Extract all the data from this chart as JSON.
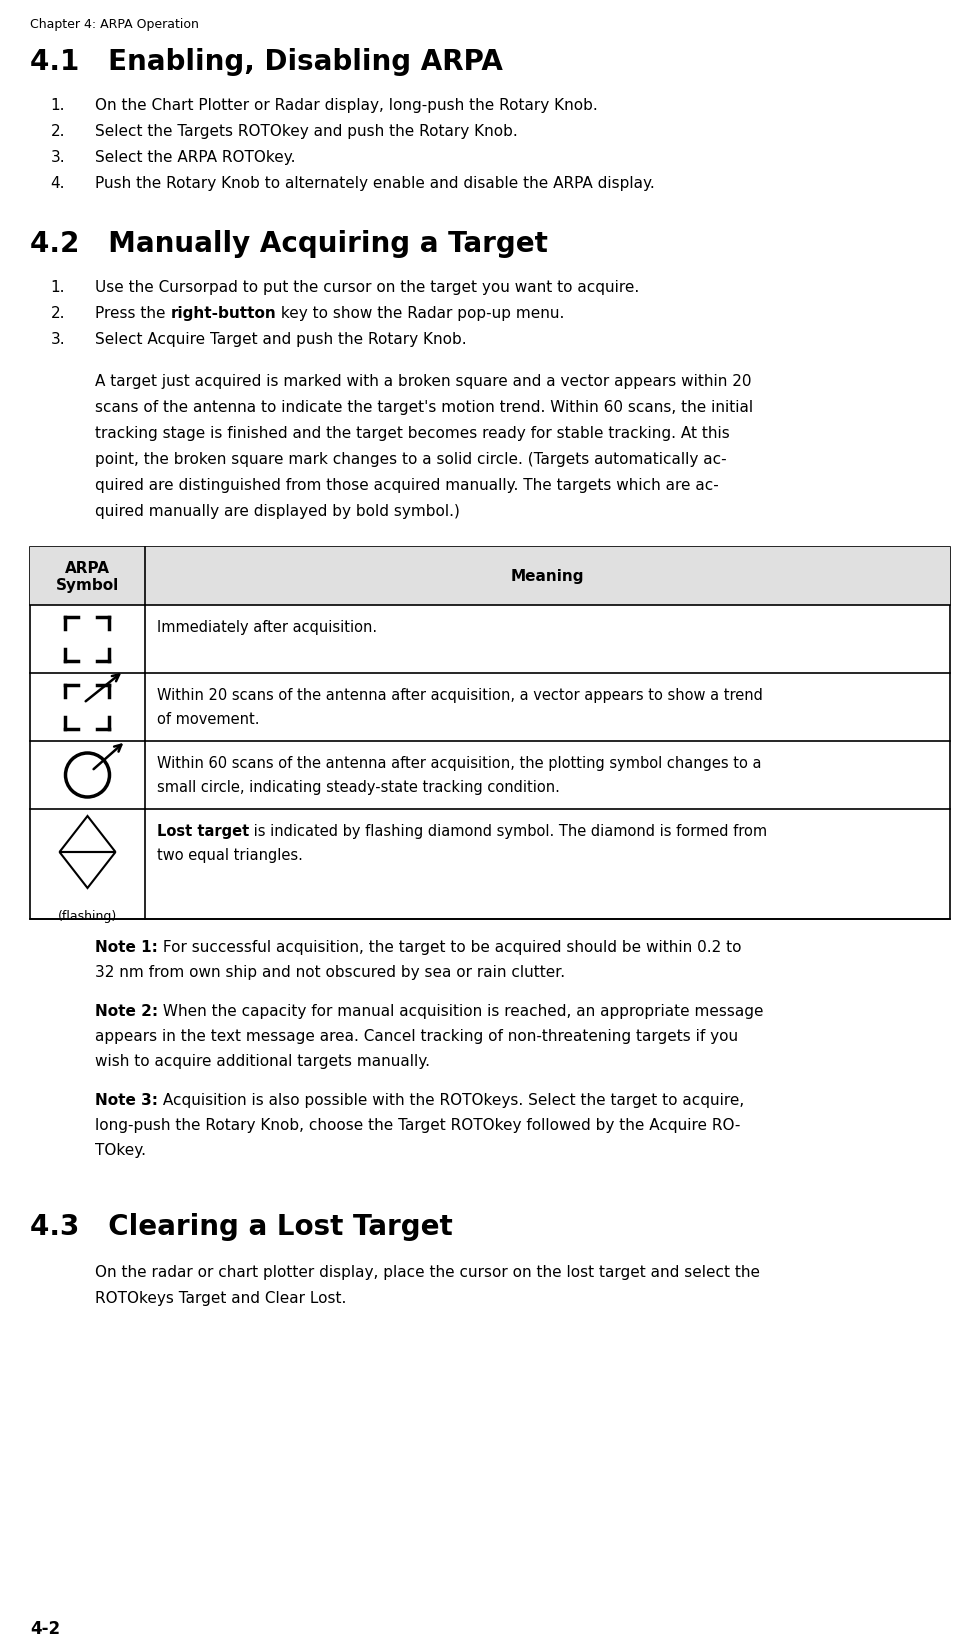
{
  "page_header": "Chapter 4: ARPA Operation",
  "section_41_title": "4.1   Enabling, Disabling ARPA",
  "section_41_items": [
    "On the Chart Plotter or Radar display, long-push the Rotary Knob.",
    "Select the Targets ROTOkey and push the Rotary Knob.",
    "Select the ARPA ROTOkey.",
    "Push the Rotary Knob to alternately enable and disable the ARPA display."
  ],
  "section_42_title": "4.2   Manually Acquiring a Target",
  "section_42_items_pre": [
    "Use the Cursorpad to put the cursor on the target you want to acquire."
  ],
  "section_42_item2_pre": "Press the ",
  "section_42_item2_bold": "right-button",
  "section_42_item2_post": " key to show the Radar pop-up menu.",
  "section_42_items_post": [
    "Select Acquire Target and push the Rotary Knob."
  ],
  "section_42_para_lines": [
    "A target just acquired is marked with a broken square and a vector appears within 20",
    "scans of the antenna to indicate the target's motion trend. Within 60 scans, the initial",
    "tracking stage is finished and the target becomes ready for stable tracking. At this",
    "point, the broken square mark changes to a solid circle. (Targets automatically ac-",
    "quired are distinguished from those acquired manually. The targets which are ac-",
    "quired manually are displayed by bold symbol.)"
  ],
  "table_header_col1": "ARPA\nSymbol",
  "table_header_col2": "Meaning",
  "table_row_meanings": [
    "Immediately after acquisition.",
    "Within 20 scans of the antenna after acquisition, a vector appears to show a trend\nof movement.",
    "Within 60 scans of the antenna after acquisition, the plotting symbol changes to a\nsmall circle, indicating steady-state tracking condition.",
    ""
  ],
  "table_row4_bold": "Lost target",
  "table_row4_rest": " is indicated by flashing diamond symbol. The diamond is formed from\ntwo equal triangles.",
  "note1_label": "Note 1:",
  "note1_lines": [
    " For successful acquisition, the target to be acquired should be within 0.2 to",
    "32 nm from own ship and not obscured by sea or rain clutter."
  ],
  "note2_label": "Note 2:",
  "note2_lines": [
    " When the capacity for manual acquisition is reached, an appropriate message",
    "appears in the text message area. Cancel tracking of non-threatening targets if you",
    "wish to acquire additional targets manually."
  ],
  "note3_label": "Note 3:",
  "note3_lines": [
    " Acquisition is also possible with the ROTOkeys. Select the target to acquire,",
    "long-push the Rotary Knob, choose the Target ROTOkey followed by the Acquire RO-",
    "TOkey."
  ],
  "section_43_title": "4.3   Clearing a Lost Target",
  "section_43_lines": [
    "On the radar or chart plotter display, place the cursor on the lost target and select the",
    "ROTOkeys Target and Clear Lost."
  ],
  "page_number": "4-2",
  "bg_color": "#ffffff",
  "text_color": "#000000",
  "table_border_color": "#000000",
  "header_bg": "#e0e0e0"
}
